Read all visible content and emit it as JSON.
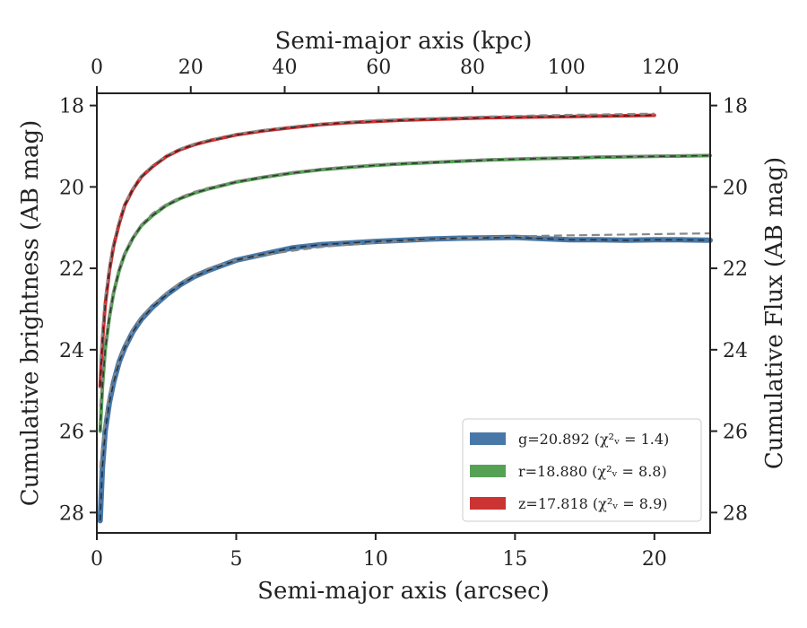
{
  "chart_data": {
    "type": "line",
    "title": "",
    "xlabel": "Semi-major axis (arcsec)",
    "ylabel": "Cumulative brightness (AB mag)",
    "x2label": "Semi-major axis (kpc)",
    "y2label": "Cumulative Flux (AB mag)",
    "xlim": [
      0,
      22
    ],
    "ylim": [
      28.5,
      17.7
    ],
    "y_inverted": true,
    "x2lim": [
      0,
      130.6
    ],
    "xticks": [
      0,
      5,
      10,
      15,
      20
    ],
    "yticks": [
      18,
      20,
      22,
      24,
      26,
      28
    ],
    "x2ticks": [
      0,
      20,
      40,
      60,
      80,
      100,
      120
    ],
    "grid": false,
    "legend_position": "lower-right",
    "model_color": "#888888",
    "series": [
      {
        "name": "g=20.892 ($\\chi_\\nu^2 = 1.4$)",
        "legend_label": "g=20.892 (χ²ᵥ = 1.4)",
        "color": "#4878a8",
        "x": [
          0.12,
          0.2,
          0.3,
          0.45,
          0.6,
          0.8,
          1.0,
          1.3,
          1.6,
          2.0,
          2.5,
          3.0,
          3.5,
          4.0,
          5.0,
          6.0,
          7.0,
          8.0,
          9.0,
          10.0,
          11.0,
          12.0,
          13.0,
          14.0,
          15.0,
          16.0,
          17.0,
          18.0,
          19.0,
          20.0,
          21.0,
          22.0
        ],
        "y": [
          28.2,
          26.9,
          26.0,
          25.3,
          24.8,
          24.3,
          23.95,
          23.55,
          23.25,
          22.95,
          22.65,
          22.4,
          22.2,
          22.05,
          21.8,
          21.65,
          21.5,
          21.42,
          21.38,
          21.34,
          21.31,
          21.28,
          21.26,
          21.25,
          21.24,
          21.27,
          21.3,
          21.3,
          21.31,
          21.3,
          21.3,
          21.31
        ]
      },
      {
        "name": "r=18.880 ($\\chi_\\nu^2 = 8.8$)",
        "legend_label": "r=18.880 (χ²ᵥ = 8.8)",
        "color": "#55a255",
        "x": [
          0.12,
          0.2,
          0.3,
          0.45,
          0.6,
          0.8,
          1.0,
          1.3,
          1.6,
          2.0,
          2.5,
          3.0,
          3.5,
          4.0,
          5.0,
          6.0,
          7.0,
          8.0,
          9.0,
          10.0,
          11.0,
          12.0,
          13.0,
          14.0,
          15.0,
          16.0,
          17.0,
          18.0,
          19.0,
          20.0,
          21.0,
          22.0
        ],
        "y": [
          26.0,
          24.9,
          24.0,
          23.2,
          22.6,
          22.05,
          21.65,
          21.25,
          20.95,
          20.7,
          20.45,
          20.28,
          20.15,
          20.05,
          19.88,
          19.76,
          19.66,
          19.58,
          19.52,
          19.47,
          19.43,
          19.4,
          19.37,
          19.34,
          19.32,
          19.3,
          19.29,
          19.27,
          19.26,
          19.25,
          19.24,
          19.23
        ]
      },
      {
        "name": "z=17.818 ($\\chi_\\nu^2 = 8.9$)",
        "legend_label": "z=17.818 (χ²ᵥ = 8.9)",
        "color": "#cc3333",
        "x": [
          0.12,
          0.2,
          0.3,
          0.45,
          0.6,
          0.8,
          1.0,
          1.3,
          1.6,
          2.0,
          2.5,
          3.0,
          3.5,
          4.0,
          5.0,
          6.0,
          7.0,
          8.0,
          9.0,
          10.0,
          11.0,
          12.0,
          13.0,
          14.0,
          15.0,
          16.0,
          17.0,
          18.0,
          19.0,
          20.0
        ],
        "y": [
          24.9,
          23.8,
          22.9,
          22.05,
          21.45,
          20.9,
          20.45,
          20.05,
          19.75,
          19.5,
          19.25,
          19.08,
          18.96,
          18.87,
          18.72,
          18.62,
          18.54,
          18.47,
          18.42,
          18.39,
          18.36,
          18.34,
          18.32,
          18.3,
          18.29,
          18.28,
          18.27,
          18.26,
          18.25,
          18.24
        ]
      }
    ],
    "models": [
      {
        "series": "g",
        "x": [
          0.12,
          0.2,
          0.3,
          0.45,
          0.6,
          0.8,
          1.0,
          1.3,
          1.6,
          2.0,
          2.5,
          3.0,
          3.5,
          4.0,
          5.0,
          6.0,
          7.0,
          8.0,
          9.0,
          10.0,
          11.0,
          12.0,
          13.0,
          14.0,
          15.0,
          16.0,
          17.0,
          18.0,
          19.0,
          20.0,
          21.0,
          22.0
        ],
        "y": [
          26.9,
          26.3,
          25.7,
          25.1,
          24.7,
          24.25,
          23.9,
          23.5,
          23.2,
          22.9,
          22.6,
          22.35,
          22.15,
          22.0,
          21.8,
          21.67,
          21.57,
          21.48,
          21.42,
          21.37,
          21.33,
          21.29,
          21.26,
          21.24,
          21.22,
          21.2,
          21.19,
          21.18,
          21.17,
          21.16,
          21.15,
          21.14
        ]
      },
      {
        "series": "r",
        "x": [
          0.12,
          0.2,
          0.3,
          0.45,
          0.6,
          0.8,
          1.0,
          1.3,
          1.6,
          2.0,
          2.5,
          3.0,
          3.5,
          4.0,
          5.0,
          6.0,
          7.0,
          8.0,
          9.0,
          10.0,
          11.0,
          12.0,
          13.0,
          14.0,
          15.0,
          16.0,
          17.0,
          18.0,
          19.0,
          20.0,
          21.0,
          22.0
        ],
        "y": [
          25.4,
          24.6,
          23.8,
          23.1,
          22.55,
          22.0,
          21.62,
          21.22,
          20.92,
          20.65,
          20.42,
          20.25,
          20.12,
          20.02,
          19.86,
          19.74,
          19.64,
          19.56,
          19.5,
          19.45,
          19.41,
          19.38,
          19.35,
          19.32,
          19.3,
          19.28,
          19.27,
          19.25,
          19.24,
          19.23,
          19.22,
          19.21
        ]
      },
      {
        "series": "z",
        "x": [
          0.12,
          0.2,
          0.3,
          0.45,
          0.6,
          0.8,
          1.0,
          1.3,
          1.6,
          2.0,
          2.5,
          3.0,
          3.5,
          4.0,
          5.0,
          6.0,
          7.0,
          8.0,
          9.0,
          10.0,
          11.0,
          12.0,
          13.0,
          14.0,
          15.0,
          16.0,
          17.0,
          18.0,
          19.0,
          20.0
        ],
        "y": [
          24.3,
          23.5,
          22.7,
          21.95,
          21.4,
          20.85,
          20.42,
          20.02,
          19.73,
          19.47,
          19.23,
          19.06,
          18.94,
          18.85,
          18.7,
          18.6,
          18.52,
          18.45,
          18.4,
          18.36,
          18.33,
          18.31,
          18.29,
          18.27,
          18.26,
          18.24,
          18.23,
          18.22,
          18.21,
          18.2
        ]
      }
    ]
  }
}
